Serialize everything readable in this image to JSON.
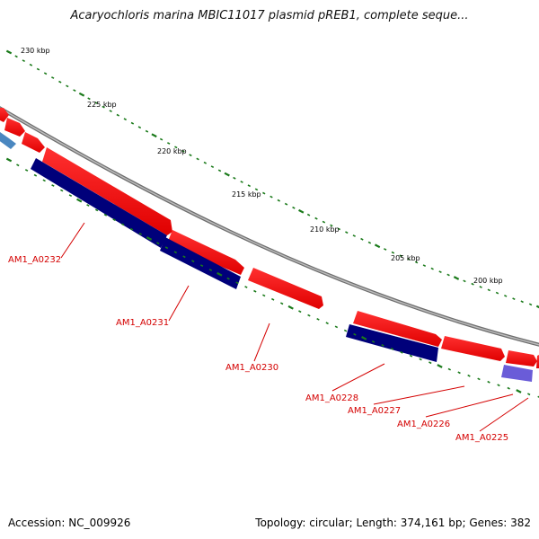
{
  "title": "Acaryochloris marina MBIC11017 plasmid pREB1, complete seque...",
  "accession_text": "Accession: NC_009926",
  "topology_text": "Topology: circular; Length: 374,161 bp; Genes: 382",
  "colors": {
    "forward": "#ff0000",
    "reverse": "#00007a",
    "blue_light": "#4a87c0",
    "purple": "#6a5cd8",
    "backbone": "#8a8a8a",
    "ticks": "#1a7a1a",
    "label": "#d40000"
  },
  "ticks": [
    {
      "label": "230 kbp"
    },
    {
      "label": "225 kbp"
    },
    {
      "label": "220 kbp"
    },
    {
      "label": "215 kbp"
    },
    {
      "label": "210 kbp"
    },
    {
      "label": "205 kbp"
    },
    {
      "label": "200 kbp"
    }
  ],
  "gene_labels": [
    {
      "label": "AM1_A0232"
    },
    {
      "label": "AM1_A0231"
    },
    {
      "label": "AM1_A0230"
    },
    {
      "label": "AM1_A0228"
    },
    {
      "label": "AM1_A0227"
    },
    {
      "label": "AM1_A0226"
    },
    {
      "label": "AM1_A0225"
    }
  ]
}
